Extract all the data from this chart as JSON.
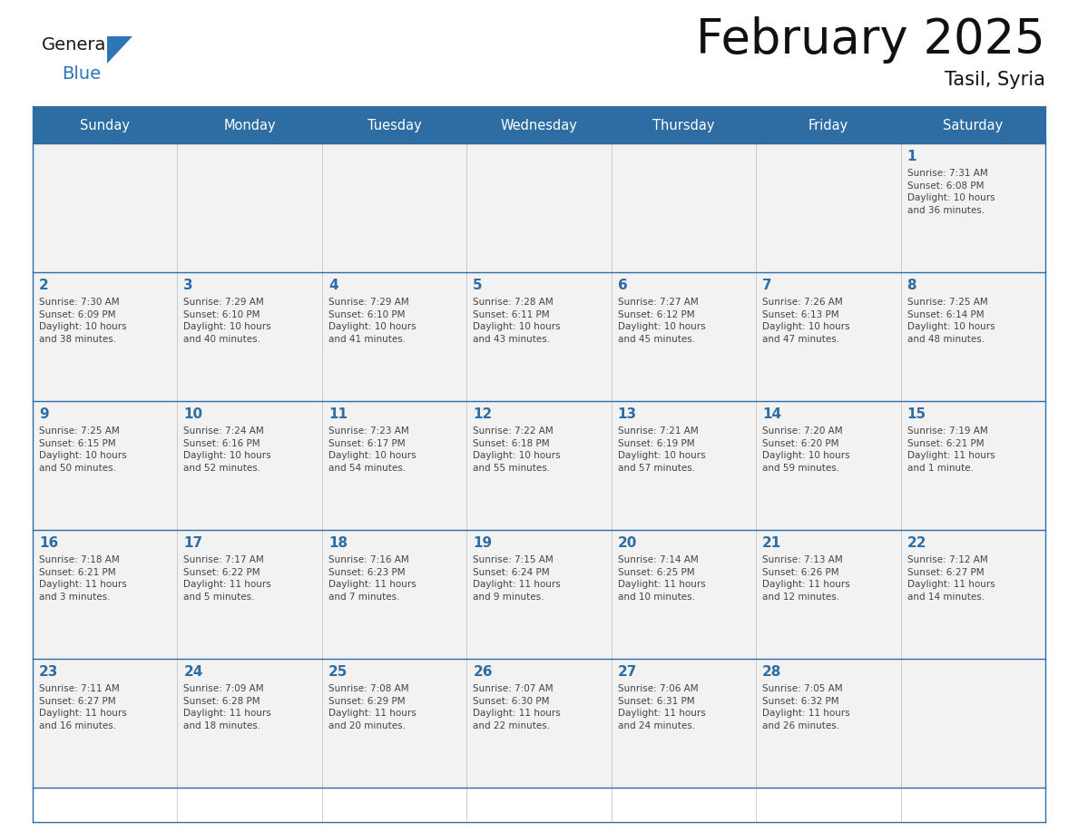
{
  "title": "February 2025",
  "subtitle": "Tasil, Syria",
  "title_fontsize": 38,
  "subtitle_fontsize": 15,
  "header_bg_color": "#2E6DA4",
  "header_text_color": "#FFFFFF",
  "cell_bg_color": "#FFFFFF",
  "border_color": "#2E6DA4",
  "day_text_color": "#2E6DA4",
  "info_text_color": "#444444",
  "days_of_week": [
    "Sunday",
    "Monday",
    "Tuesday",
    "Wednesday",
    "Thursday",
    "Friday",
    "Saturday"
  ],
  "weeks": [
    [
      {
        "day": null,
        "info": ""
      },
      {
        "day": null,
        "info": ""
      },
      {
        "day": null,
        "info": ""
      },
      {
        "day": null,
        "info": ""
      },
      {
        "day": null,
        "info": ""
      },
      {
        "day": null,
        "info": ""
      },
      {
        "day": 1,
        "info": "Sunrise: 7:31 AM\nSunset: 6:08 PM\nDaylight: 10 hours\nand 36 minutes."
      }
    ],
    [
      {
        "day": 2,
        "info": "Sunrise: 7:30 AM\nSunset: 6:09 PM\nDaylight: 10 hours\nand 38 minutes."
      },
      {
        "day": 3,
        "info": "Sunrise: 7:29 AM\nSunset: 6:10 PM\nDaylight: 10 hours\nand 40 minutes."
      },
      {
        "day": 4,
        "info": "Sunrise: 7:29 AM\nSunset: 6:10 PM\nDaylight: 10 hours\nand 41 minutes."
      },
      {
        "day": 5,
        "info": "Sunrise: 7:28 AM\nSunset: 6:11 PM\nDaylight: 10 hours\nand 43 minutes."
      },
      {
        "day": 6,
        "info": "Sunrise: 7:27 AM\nSunset: 6:12 PM\nDaylight: 10 hours\nand 45 minutes."
      },
      {
        "day": 7,
        "info": "Sunrise: 7:26 AM\nSunset: 6:13 PM\nDaylight: 10 hours\nand 47 minutes."
      },
      {
        "day": 8,
        "info": "Sunrise: 7:25 AM\nSunset: 6:14 PM\nDaylight: 10 hours\nand 48 minutes."
      }
    ],
    [
      {
        "day": 9,
        "info": "Sunrise: 7:25 AM\nSunset: 6:15 PM\nDaylight: 10 hours\nand 50 minutes."
      },
      {
        "day": 10,
        "info": "Sunrise: 7:24 AM\nSunset: 6:16 PM\nDaylight: 10 hours\nand 52 minutes."
      },
      {
        "day": 11,
        "info": "Sunrise: 7:23 AM\nSunset: 6:17 PM\nDaylight: 10 hours\nand 54 minutes."
      },
      {
        "day": 12,
        "info": "Sunrise: 7:22 AM\nSunset: 6:18 PM\nDaylight: 10 hours\nand 55 minutes."
      },
      {
        "day": 13,
        "info": "Sunrise: 7:21 AM\nSunset: 6:19 PM\nDaylight: 10 hours\nand 57 minutes."
      },
      {
        "day": 14,
        "info": "Sunrise: 7:20 AM\nSunset: 6:20 PM\nDaylight: 10 hours\nand 59 minutes."
      },
      {
        "day": 15,
        "info": "Sunrise: 7:19 AM\nSunset: 6:21 PM\nDaylight: 11 hours\nand 1 minute."
      }
    ],
    [
      {
        "day": 16,
        "info": "Sunrise: 7:18 AM\nSunset: 6:21 PM\nDaylight: 11 hours\nand 3 minutes."
      },
      {
        "day": 17,
        "info": "Sunrise: 7:17 AM\nSunset: 6:22 PM\nDaylight: 11 hours\nand 5 minutes."
      },
      {
        "day": 18,
        "info": "Sunrise: 7:16 AM\nSunset: 6:23 PM\nDaylight: 11 hours\nand 7 minutes."
      },
      {
        "day": 19,
        "info": "Sunrise: 7:15 AM\nSunset: 6:24 PM\nDaylight: 11 hours\nand 9 minutes."
      },
      {
        "day": 20,
        "info": "Sunrise: 7:14 AM\nSunset: 6:25 PM\nDaylight: 11 hours\nand 10 minutes."
      },
      {
        "day": 21,
        "info": "Sunrise: 7:13 AM\nSunset: 6:26 PM\nDaylight: 11 hours\nand 12 minutes."
      },
      {
        "day": 22,
        "info": "Sunrise: 7:12 AM\nSunset: 6:27 PM\nDaylight: 11 hours\nand 14 minutes."
      }
    ],
    [
      {
        "day": 23,
        "info": "Sunrise: 7:11 AM\nSunset: 6:27 PM\nDaylight: 11 hours\nand 16 minutes."
      },
      {
        "day": 24,
        "info": "Sunrise: 7:09 AM\nSunset: 6:28 PM\nDaylight: 11 hours\nand 18 minutes."
      },
      {
        "day": 25,
        "info": "Sunrise: 7:08 AM\nSunset: 6:29 PM\nDaylight: 11 hours\nand 20 minutes."
      },
      {
        "day": 26,
        "info": "Sunrise: 7:07 AM\nSunset: 6:30 PM\nDaylight: 11 hours\nand 22 minutes."
      },
      {
        "day": 27,
        "info": "Sunrise: 7:06 AM\nSunset: 6:31 PM\nDaylight: 11 hours\nand 24 minutes."
      },
      {
        "day": 28,
        "info": "Sunrise: 7:05 AM\nSunset: 6:32 PM\nDaylight: 11 hours\nand 26 minutes."
      },
      {
        "day": null,
        "info": ""
      }
    ]
  ],
  "logo_color_general": "#1a1a1a",
  "logo_color_blue": "#2E75B6",
  "logo_triangle_color": "#2E75B6",
  "fig_width": 11.88,
  "fig_height": 9.18,
  "dpi": 100
}
